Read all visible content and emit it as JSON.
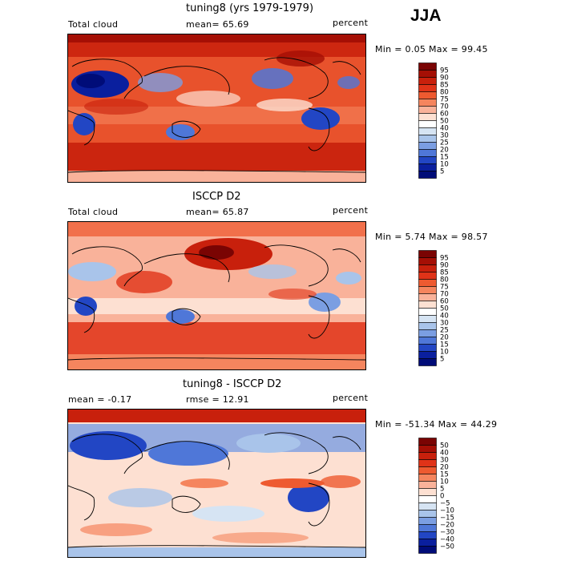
{
  "season": "JJA",
  "panels": [
    {
      "title": "tuning8 (yrs 1979-1979)",
      "left_label": "Total cloud",
      "mid_label": "mean=  65.69",
      "right_label": "percent",
      "minmax": "Min =   0.05 Max =  99.45",
      "colorbar_labels": [
        "95",
        "90",
        "85",
        "80",
        "75",
        "70",
        "60",
        "50",
        "40",
        "30",
        "25",
        "20",
        "15",
        "10",
        "5"
      ]
    },
    {
      "title": "ISCCP D2",
      "left_label": "Total cloud",
      "mid_label": "mean=  65.87",
      "right_label": "percent",
      "minmax": "Min =   5.74 Max =  98.57",
      "colorbar_labels": [
        "95",
        "90",
        "85",
        "80",
        "75",
        "70",
        "60",
        "50",
        "40",
        "30",
        "25",
        "20",
        "15",
        "10",
        "5"
      ]
    },
    {
      "title": "tuning8 - ISCCP D2",
      "left_label": "mean =  -0.17",
      "mid_label": "rmse =  12.91",
      "right_label": "percent",
      "minmax": "Min = -51.34 Max =  44.29",
      "colorbar_labels": [
        "50",
        "40",
        "30",
        "20",
        "15",
        "10",
        "5",
        "0",
        "−5",
        "−10",
        "−15",
        "−20",
        "−30",
        "−40",
        "−50"
      ]
    }
  ],
  "colors": {
    "ramp": [
      "#7a0403",
      "#a50f05",
      "#c8200c",
      "#e03318",
      "#ee5a30",
      "#f5855e",
      "#f9b29a",
      "#fde0d2",
      "#ffffff",
      "#d6e4f3",
      "#a9c4ea",
      "#7b9ee2",
      "#4f77d8",
      "#2246c4",
      "#0a1f9e",
      "#000c78"
    ]
  },
  "chart_data": [
    {
      "type": "heatmap",
      "title": "tuning8 (yrs 1979-1979)",
      "variable": "Total cloud",
      "units": "percent",
      "mean": 65.69,
      "min": 0.05,
      "max": 99.45,
      "colorbar_levels": [
        5,
        10,
        15,
        20,
        25,
        30,
        40,
        50,
        60,
        70,
        75,
        80,
        85,
        90,
        95
      ]
    },
    {
      "type": "heatmap",
      "title": "ISCCP D2",
      "variable": "Total cloud",
      "units": "percent",
      "mean": 65.87,
      "min": 5.74,
      "max": 98.57,
      "colorbar_levels": [
        5,
        10,
        15,
        20,
        25,
        30,
        40,
        50,
        60,
        70,
        75,
        80,
        85,
        90,
        95
      ]
    },
    {
      "type": "heatmap",
      "title": "tuning8 - ISCCP D2",
      "units": "percent",
      "mean": -0.17,
      "rmse": 12.91,
      "min": -51.34,
      "max": 44.29,
      "colorbar_levels": [
        -50,
        -40,
        -30,
        -20,
        -15,
        -10,
        -5,
        0,
        5,
        10,
        15,
        20,
        30,
        40,
        50
      ]
    }
  ]
}
